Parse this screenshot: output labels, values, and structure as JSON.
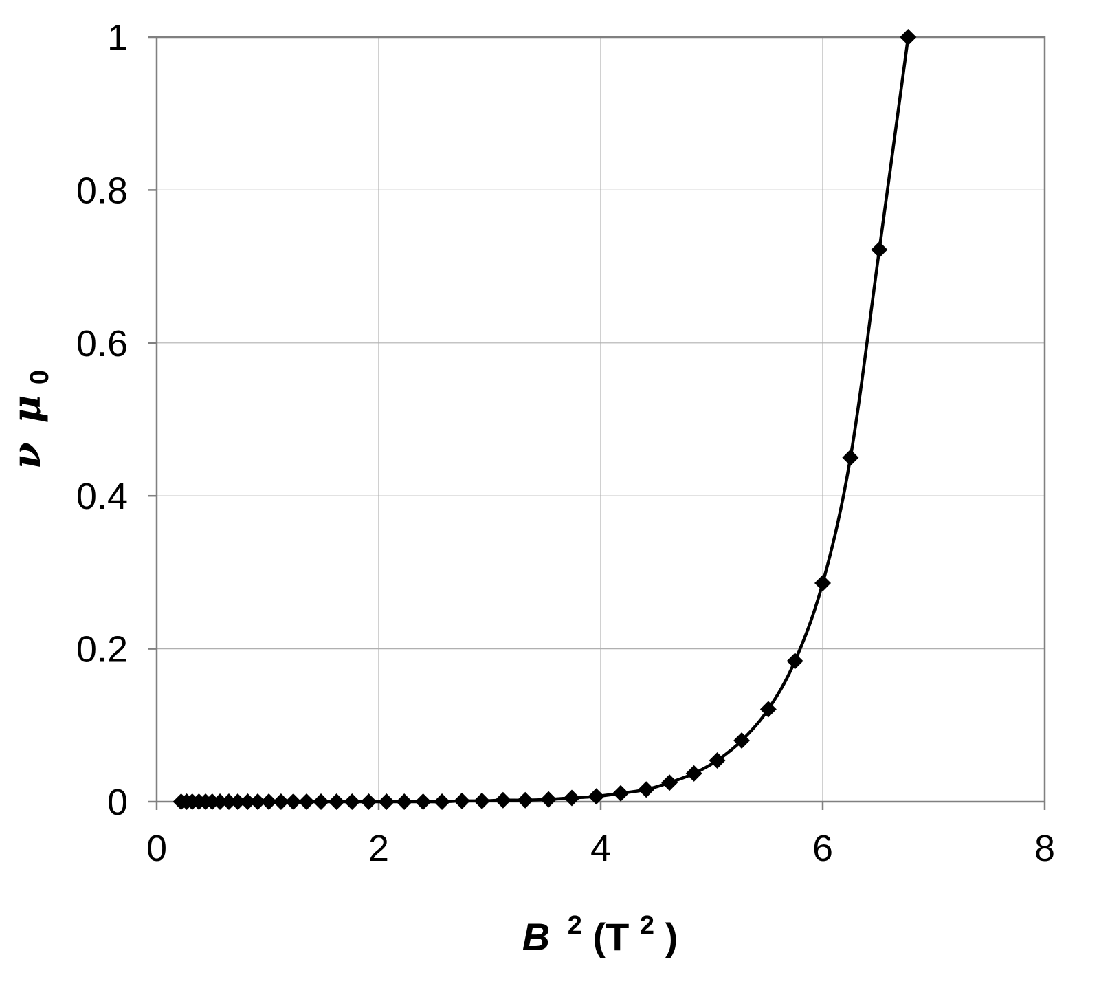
{
  "chart_data": {
    "type": "scatter",
    "title": "",
    "xlabel": {
      "base": "B",
      "sup": "2",
      "unit_open": " (T",
      "unit_sup": "2",
      "unit_close": ")"
    },
    "ylabel": {
      "greek1": "ν",
      "greek2": "μ",
      "sub": "0"
    },
    "xlim": [
      0,
      8
    ],
    "ylim": [
      0,
      1
    ],
    "xticks": [
      0,
      2,
      4,
      6,
      8
    ],
    "yticks": [
      0,
      0.2,
      0.4,
      0.6,
      0.8,
      1
    ],
    "xtick_labels": [
      "0",
      "2",
      "4",
      "6",
      "8"
    ],
    "ytick_labels": [
      "0",
      "0.2",
      "0.4",
      "0.6",
      "0.8",
      "1"
    ],
    "grid": true,
    "legend": "none",
    "marker": "diamond",
    "line": "smooth",
    "series_color": "#000000",
    "series": [
      {
        "x": [
          0.22,
          0.27,
          0.32,
          0.38,
          0.44,
          0.5,
          0.57,
          0.65,
          0.73,
          0.82,
          0.91,
          1.01,
          1.12,
          1.23,
          1.35,
          1.48,
          1.62,
          1.76,
          1.91,
          2.07,
          2.23,
          2.4,
          2.57,
          2.75,
          2.93,
          3.12,
          3.32,
          3.53,
          3.74,
          3.96,
          4.18,
          4.41,
          4.62,
          4.84,
          5.05,
          5.27,
          5.51,
          5.75,
          6.0,
          6.25,
          6.51,
          6.77
        ],
        "y": [
          0,
          0,
          0,
          0,
          0,
          0,
          0,
          0,
          0,
          0,
          0,
          0,
          0,
          0,
          0,
          0,
          0,
          0,
          0,
          0,
          0,
          0,
          0,
          0.001,
          0.001,
          0.002,
          0.002,
          0.003,
          0.005,
          0.007,
          0.011,
          0.016,
          0.025,
          0.037,
          0.054,
          0.08,
          0.121,
          0.184,
          0.286,
          0.45,
          0.722,
          1.0
        ]
      }
    ]
  }
}
